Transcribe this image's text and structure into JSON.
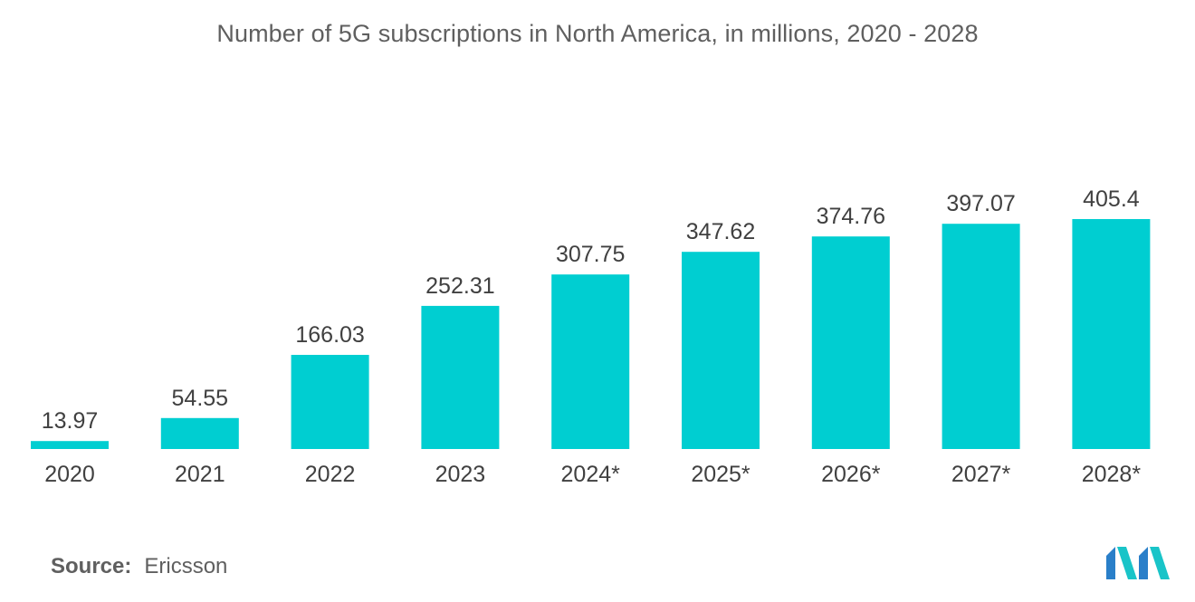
{
  "chart_data": {
    "type": "bar",
    "title": "Number of 5G subscriptions in North America, in millions, 2020 - 2028",
    "categories": [
      "2020",
      "2021",
      "2022",
      "2023",
      "2024*",
      "2025*",
      "2026*",
      "2027*",
      "2028*"
    ],
    "values": [
      13.97,
      54.55,
      166.03,
      252.31,
      307.75,
      347.62,
      374.76,
      397.07,
      405.4
    ],
    "value_labels": [
      "13.97",
      "54.55",
      "166.03",
      "252.31",
      "307.75",
      "347.62",
      "374.76",
      "397.07",
      "405.4"
    ],
    "xlabel": "",
    "ylabel": "",
    "ylim": [
      0,
      405.4
    ],
    "grid": false,
    "legend": "none",
    "bar_color": "#00ced1"
  },
  "footer": {
    "source_key": "Source:",
    "source_value": "Ericsson"
  },
  "logo": {
    "icon": "mordor-intelligence-logo-icon",
    "colors": [
      "#2a7fc9",
      "#19c4c8"
    ]
  }
}
